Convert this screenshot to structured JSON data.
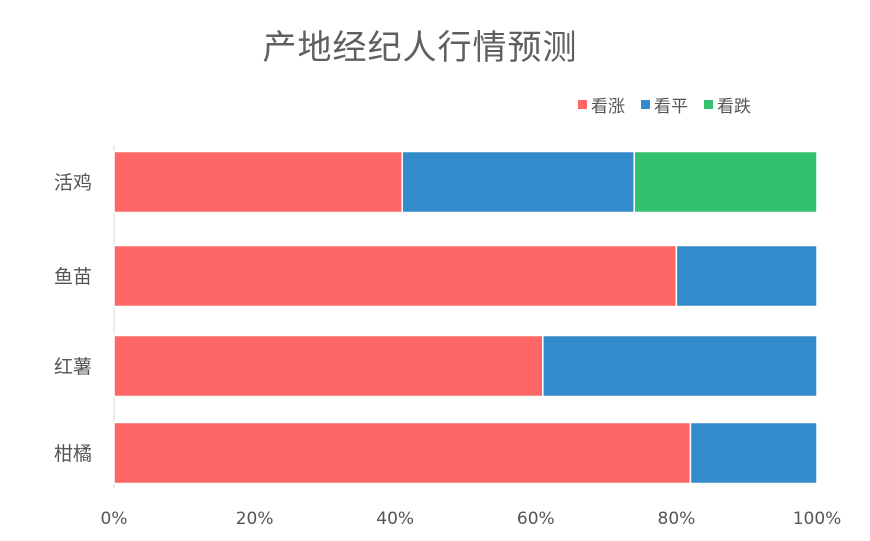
{
  "chart_data": {
    "type": "bar",
    "orientation": "horizontal",
    "stacked": true,
    "percent_stacked": true,
    "title": "产地经纪人行情预测",
    "categories": [
      "活鸡",
      "鱼苗",
      "红薯",
      "柑橘"
    ],
    "series": [
      {
        "name": "看涨",
        "color": "#ff6666",
        "values": [
          41,
          80,
          61,
          82
        ]
      },
      {
        "name": "看平",
        "color": "#348bcc",
        "values": [
          33,
          20,
          39,
          18
        ]
      },
      {
        "name": "看跌",
        "color": "#33c170",
        "values": [
          26,
          0,
          0,
          0
        ]
      }
    ],
    "xlim": [
      0,
      100
    ],
    "x_ticks": [
      "0%",
      "20%",
      "40%",
      "60%",
      "80%",
      "100%"
    ],
    "grid": false,
    "legend_position": "top-right"
  }
}
